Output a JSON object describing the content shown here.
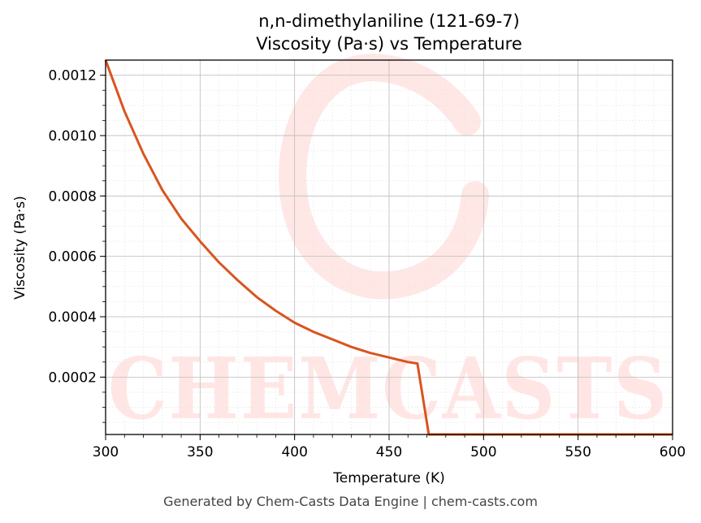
{
  "chart_data": {
    "type": "line",
    "title": "n,n-dimethylaniline (121-69-7)",
    "subtitle": "Viscosity (Pa·s) vs Temperature",
    "xlabel": "Temperature (K)",
    "ylabel": "Viscosity (Pa·s)",
    "xlim": [
      300,
      600
    ],
    "ylim": [
      1e-05,
      0.00125
    ],
    "x_ticks": [
      "300",
      "350",
      "400",
      "450",
      "500",
      "550",
      "600"
    ],
    "y_ticks": [
      "0.0002",
      "0.0004",
      "0.0006",
      "0.0008",
      "0.0010",
      "0.0012"
    ],
    "grid": true,
    "series": [
      {
        "color": "#d9541e",
        "x": [
          300,
          310,
          320,
          330,
          340,
          350,
          360,
          370,
          380,
          390,
          400,
          410,
          420,
          430,
          440,
          450,
          460,
          465,
          471,
          480,
          500,
          550,
          600
        ],
        "y": [
          0.00125,
          0.00108,
          0.00094,
          0.00082,
          0.000725,
          0.00065,
          0.00058,
          0.00052,
          0.000465,
          0.00042,
          0.00038,
          0.00035,
          0.000325,
          0.0003,
          0.00028,
          0.000265,
          0.00025,
          0.000245,
          1e-05,
          1e-05,
          1e-05,
          1e-05,
          1e-05
        ]
      }
    ]
  },
  "watermark": "CHEMCASTS",
  "footer": "Generated by Chem-Casts Data Engine | chem-casts.com"
}
